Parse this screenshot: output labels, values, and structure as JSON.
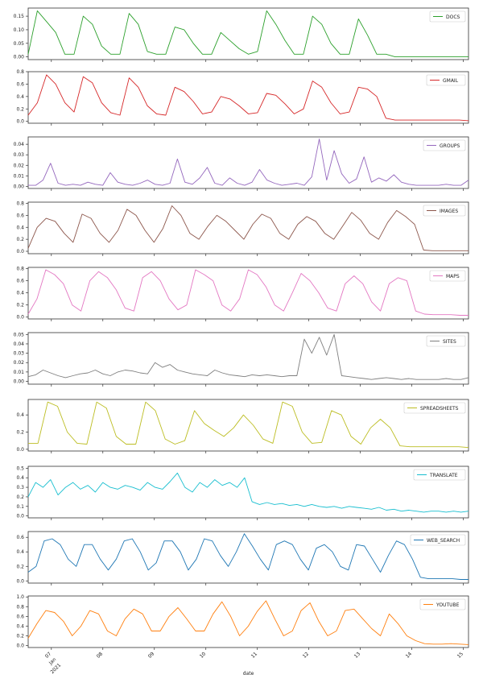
{
  "figure": {
    "xlabel": "date"
  },
  "x_ticks": [
    {
      "label": "07",
      "sub": [
        "Jan",
        "2021"
      ],
      "day": 7
    },
    {
      "label": "08",
      "day": 8
    },
    {
      "label": "09",
      "day": 9
    },
    {
      "label": "10",
      "day": 10
    },
    {
      "label": "11",
      "day": 11
    },
    {
      "label": "12",
      "day": 12
    },
    {
      "label": "13",
      "day": 13
    },
    {
      "label": "14",
      "day": 14
    },
    {
      "label": "15",
      "day": 15
    }
  ],
  "chart_data": [
    {
      "type": "line",
      "legend": "top-right",
      "color": "#2ca02c",
      "series": [
        {
          "name": "DOCS",
          "values": [
            0.01,
            0.17,
            0.13,
            0.09,
            0.01,
            0.01,
            0.15,
            0.12,
            0.04,
            0.01,
            0.01,
            0.16,
            0.12,
            0.02,
            0.01,
            0.01,
            0.11,
            0.1,
            0.05,
            0.01,
            0.01,
            0.09,
            0.06,
            0.03,
            0.01,
            0.02,
            0.17,
            0.12,
            0.06,
            0.01,
            0.01,
            0.15,
            0.12,
            0.05,
            0.01,
            0.01,
            0.14,
            0.08,
            0.01,
            0.01,
            0.0,
            0.0,
            0.0,
            0.0,
            0.0,
            0.0,
            0.0,
            0.0,
            0.0
          ]
        }
      ],
      "ylim": [
        -0.01,
        0.18
      ],
      "yticks": [
        0.0,
        0.05,
        0.1,
        0.15
      ],
      "tick_labels": [
        "0.00",
        "0.05",
        "0.10",
        "0.15"
      ]
    },
    {
      "type": "line",
      "legend": "top-right",
      "color": "#d62728",
      "series": [
        {
          "name": "GMAIL",
          "values": [
            0.1,
            0.3,
            0.75,
            0.6,
            0.3,
            0.15,
            0.72,
            0.62,
            0.3,
            0.14,
            0.1,
            0.7,
            0.55,
            0.25,
            0.12,
            0.1,
            0.55,
            0.48,
            0.32,
            0.12,
            0.15,
            0.4,
            0.36,
            0.25,
            0.12,
            0.14,
            0.45,
            0.42,
            0.28,
            0.12,
            0.2,
            0.65,
            0.55,
            0.3,
            0.12,
            0.15,
            0.55,
            0.52,
            0.4,
            0.05,
            0.02,
            0.02,
            0.02,
            0.02,
            0.02,
            0.02,
            0.02,
            0.02,
            0.01
          ]
        }
      ],
      "ylim": [
        -0.03,
        0.8
      ],
      "yticks": [
        0.0,
        0.2,
        0.4,
        0.6,
        0.8
      ],
      "tick_labels": [
        "0.0",
        "0.2",
        "0.4",
        "0.6",
        "0.8"
      ]
    },
    {
      "type": "line",
      "legend": "top-right",
      "color": "#9467bd",
      "series": [
        {
          "name": "GROUPS",
          "values": [
            0.001,
            0.001,
            0.006,
            0.022,
            0.003,
            0.001,
            0.002,
            0.001,
            0.004,
            0.002,
            0.001,
            0.013,
            0.004,
            0.002,
            0.001,
            0.003,
            0.006,
            0.002,
            0.001,
            0.003,
            0.026,
            0.004,
            0.002,
            0.008,
            0.018,
            0.003,
            0.001,
            0.008,
            0.003,
            0.001,
            0.004,
            0.016,
            0.006,
            0.003,
            0.001,
            0.002,
            0.003,
            0.001,
            0.009,
            0.045,
            0.006,
            0.034,
            0.012,
            0.003,
            0.007,
            0.028,
            0.004,
            0.008,
            0.005,
            0.011,
            0.004,
            0.002,
            0.001,
            0.001,
            0.001,
            0.001,
            0.002,
            0.001,
            0.001,
            0.006
          ]
        }
      ],
      "ylim": [
        -0.002,
        0.047
      ],
      "yticks": [
        0.0,
        0.01,
        0.02,
        0.03,
        0.04
      ],
      "tick_labels": [
        "0.00",
        "0.01",
        "0.02",
        "0.03",
        "0.04"
      ]
    },
    {
      "type": "line",
      "legend": "top-right",
      "color": "#8c564b",
      "series": [
        {
          "name": "IMAGES",
          "values": [
            0.05,
            0.4,
            0.55,
            0.5,
            0.3,
            0.15,
            0.62,
            0.55,
            0.3,
            0.15,
            0.35,
            0.7,
            0.6,
            0.35,
            0.15,
            0.38,
            0.76,
            0.6,
            0.3,
            0.2,
            0.42,
            0.6,
            0.5,
            0.35,
            0.2,
            0.45,
            0.62,
            0.55,
            0.3,
            0.2,
            0.45,
            0.58,
            0.5,
            0.3,
            0.2,
            0.42,
            0.65,
            0.52,
            0.3,
            0.2,
            0.48,
            0.68,
            0.58,
            0.45,
            0.02,
            0.01,
            0.01,
            0.01,
            0.01,
            0.01
          ]
        }
      ],
      "ylim": [
        -0.04,
        0.82
      ],
      "yticks": [
        0.0,
        0.2,
        0.4,
        0.6,
        0.8
      ],
      "tick_labels": [
        "0.0",
        "0.2",
        "0.4",
        "0.6",
        "0.8"
      ]
    },
    {
      "type": "line",
      "legend": "top-right",
      "color": "#e377c2",
      "series": [
        {
          "name": "MAPS",
          "values": [
            0.05,
            0.3,
            0.78,
            0.7,
            0.55,
            0.2,
            0.1,
            0.6,
            0.75,
            0.65,
            0.45,
            0.15,
            0.1,
            0.65,
            0.75,
            0.6,
            0.3,
            0.12,
            0.2,
            0.78,
            0.7,
            0.6,
            0.2,
            0.1,
            0.3,
            0.78,
            0.7,
            0.5,
            0.2,
            0.1,
            0.4,
            0.72,
            0.6,
            0.4,
            0.15,
            0.1,
            0.55,
            0.68,
            0.55,
            0.25,
            0.1,
            0.55,
            0.65,
            0.6,
            0.1,
            0.05,
            0.04,
            0.04,
            0.04,
            0.03,
            0.03
          ]
        }
      ],
      "ylim": [
        -0.03,
        0.82
      ],
      "yticks": [
        0.0,
        0.2,
        0.4,
        0.6,
        0.8
      ],
      "tick_labels": [
        "0.0",
        "0.2",
        "0.4",
        "0.6",
        "0.8"
      ]
    },
    {
      "type": "line",
      "legend": "top-right",
      "color": "#7f7f7f",
      "series": [
        {
          "name": "SITES",
          "values": [
            0.005,
            0.007,
            0.012,
            0.009,
            0.006,
            0.004,
            0.006,
            0.008,
            0.009,
            0.012,
            0.008,
            0.006,
            0.01,
            0.012,
            0.011,
            0.009,
            0.008,
            0.02,
            0.015,
            0.018,
            0.012,
            0.01,
            0.008,
            0.007,
            0.006,
            0.012,
            0.009,
            0.007,
            0.006,
            0.005,
            0.007,
            0.006,
            0.007,
            0.006,
            0.005,
            0.006,
            0.006,
            0.045,
            0.03,
            0.047,
            0.028,
            0.05,
            0.006,
            0.005,
            0.004,
            0.003,
            0.002,
            0.003,
            0.004,
            0.003,
            0.002,
            0.003,
            0.002,
            0.002,
            0.002,
            0.002,
            0.003,
            0.002,
            0.002,
            0.004
          ]
        }
      ],
      "ylim": [
        -0.003,
        0.052
      ],
      "yticks": [
        0.0,
        0.01,
        0.02,
        0.03,
        0.04,
        0.05
      ],
      "tick_labels": [
        "0.00",
        "0.01",
        "0.02",
        "0.03",
        "0.04",
        "0.05"
      ]
    },
    {
      "type": "line",
      "legend": "top-right",
      "color": "#bcbd22",
      "series": [
        {
          "name": "SPREADSHEETS",
          "values": [
            0.07,
            0.07,
            0.55,
            0.5,
            0.2,
            0.07,
            0.06,
            0.55,
            0.48,
            0.15,
            0.06,
            0.06,
            0.55,
            0.45,
            0.12,
            0.06,
            0.1,
            0.45,
            0.3,
            0.22,
            0.15,
            0.25,
            0.4,
            0.28,
            0.12,
            0.07,
            0.55,
            0.5,
            0.2,
            0.07,
            0.08,
            0.45,
            0.4,
            0.15,
            0.06,
            0.25,
            0.35,
            0.25,
            0.04,
            0.03,
            0.03,
            0.03,
            0.03,
            0.03,
            0.03,
            0.02
          ]
        }
      ],
      "ylim": [
        -0.02,
        0.58
      ],
      "yticks": [
        0.0,
        0.2,
        0.4
      ],
      "tick_labels": [
        "0.0",
        "0.2",
        "0.4"
      ]
    },
    {
      "type": "line",
      "legend": "top-right",
      "color": "#17becf",
      "series": [
        {
          "name": "TRANSLATE",
          "values": [
            0.2,
            0.35,
            0.3,
            0.38,
            0.22,
            0.3,
            0.35,
            0.28,
            0.32,
            0.25,
            0.35,
            0.3,
            0.28,
            0.32,
            0.3,
            0.27,
            0.35,
            0.3,
            0.28,
            0.36,
            0.45,
            0.3,
            0.25,
            0.35,
            0.3,
            0.38,
            0.32,
            0.35,
            0.3,
            0.4,
            0.15,
            0.12,
            0.14,
            0.12,
            0.13,
            0.11,
            0.12,
            0.1,
            0.12,
            0.1,
            0.09,
            0.1,
            0.08,
            0.1,
            0.09,
            0.08,
            0.07,
            0.09,
            0.06,
            0.07,
            0.05,
            0.06,
            0.05,
            0.04,
            0.05,
            0.05,
            0.04,
            0.05,
            0.04,
            0.05
          ]
        }
      ],
      "ylim": [
        -0.02,
        0.52
      ],
      "yticks": [
        0.0,
        0.1,
        0.2,
        0.3,
        0.4,
        0.5
      ],
      "tick_labels": [
        "0.0",
        "0.1",
        "0.2",
        "0.3",
        "0.4",
        "0.5"
      ]
    },
    {
      "type": "line",
      "legend": "top-right",
      "color": "#1f77b4",
      "series": [
        {
          "name": "WEB_SEARCH",
          "values": [
            0.12,
            0.2,
            0.55,
            0.58,
            0.5,
            0.3,
            0.2,
            0.5,
            0.5,
            0.3,
            0.15,
            0.3,
            0.55,
            0.58,
            0.4,
            0.15,
            0.25,
            0.55,
            0.55,
            0.4,
            0.15,
            0.3,
            0.58,
            0.55,
            0.35,
            0.2,
            0.4,
            0.65,
            0.48,
            0.3,
            0.15,
            0.5,
            0.55,
            0.5,
            0.3,
            0.15,
            0.45,
            0.5,
            0.4,
            0.2,
            0.15,
            0.5,
            0.48,
            0.3,
            0.12,
            0.35,
            0.55,
            0.5,
            0.3,
            0.05,
            0.03,
            0.03,
            0.03,
            0.03,
            0.02,
            0.02
          ]
        }
      ],
      "ylim": [
        -0.03,
        0.68
      ],
      "yticks": [
        0.0,
        0.2,
        0.4,
        0.6
      ],
      "tick_labels": [
        "0.0",
        "0.2",
        "0.4",
        "0.6"
      ]
    },
    {
      "type": "line",
      "legend": "top-right",
      "color": "#ff7f0e",
      "series": [
        {
          "name": "YOUTUBE",
          "values": [
            0.15,
            0.45,
            0.72,
            0.68,
            0.5,
            0.2,
            0.4,
            0.72,
            0.65,
            0.3,
            0.2,
            0.55,
            0.75,
            0.65,
            0.3,
            0.3,
            0.6,
            0.78,
            0.55,
            0.3,
            0.3,
            0.65,
            0.9,
            0.6,
            0.2,
            0.4,
            0.7,
            0.92,
            0.55,
            0.2,
            0.3,
            0.72,
            0.88,
            0.5,
            0.2,
            0.3,
            0.72,
            0.75,
            0.55,
            0.35,
            0.2,
            0.65,
            0.45,
            0.2,
            0.1,
            0.04,
            0.03,
            0.03,
            0.04,
            0.03,
            0.02
          ]
        }
      ],
      "ylim": [
        -0.04,
        1.02
      ],
      "yticks": [
        0.0,
        0.2,
        0.4,
        0.6,
        0.8,
        1.0
      ],
      "tick_labels": [
        "0.0",
        "0.2",
        "0.4",
        "0.6",
        "0.8",
        "1.0"
      ]
    }
  ]
}
